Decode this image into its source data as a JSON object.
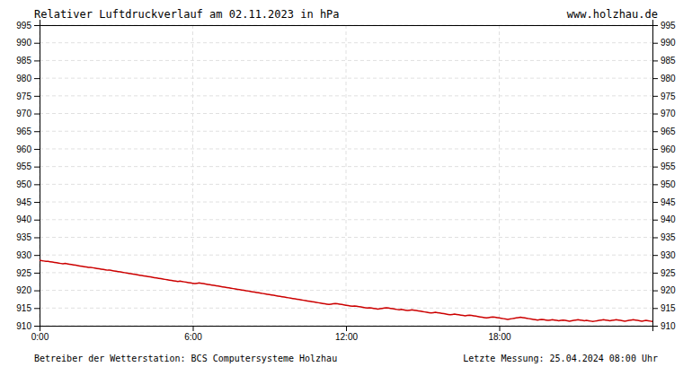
{
  "chart_data": {
    "type": "line",
    "title": "Relativer Luftdruckverlauf am 02.11.2023 in hPa",
    "annotations": [
      "www.holzhau.de",
      "Betreiber der Wetterstation: BCS Computersysteme Holzhau",
      "Letzte Messung: 25.04.2024 08:00 Uhr"
    ],
    "color": "#cc0000",
    "grid": true,
    "xlim": [
      0,
      288
    ],
    "xticks": [
      {
        "value": 0,
        "label": "0:00"
      },
      {
        "value": 72,
        "label": "6:00"
      },
      {
        "value": 144,
        "label": "12:00"
      },
      {
        "value": 216,
        "label": "18:00"
      }
    ],
    "ylim": [
      910,
      995
    ],
    "yticks": [
      910,
      915,
      920,
      925,
      930,
      935,
      940,
      945,
      950,
      955,
      960,
      965,
      970,
      975,
      980,
      985,
      990,
      995
    ],
    "values": [
      928.5,
      928.4,
      928.3,
      928.2,
      928.2,
      928.1,
      928.0,
      927.9,
      927.8,
      927.7,
      927.6,
      927.5,
      927.6,
      927.5,
      927.4,
      927.3,
      927.2,
      927.1,
      927.0,
      926.9,
      926.8,
      926.7,
      926.6,
      926.5,
      926.5,
      926.4,
      926.3,
      926.2,
      926.1,
      926.0,
      925.9,
      925.8,
      925.7,
      925.7,
      925.6,
      925.5,
      925.4,
      925.3,
      925.2,
      925.1,
      925.0,
      924.9,
      924.8,
      924.7,
      924.6,
      924.5,
      924.4,
      924.3,
      924.2,
      924.1,
      924.0,
      923.9,
      923.8,
      923.7,
      923.6,
      923.5,
      923.4,
      923.3,
      923.2,
      923.1,
      923.0,
      922.9,
      922.8,
      922.7,
      922.6,
      922.5,
      922.6,
      922.5,
      922.4,
      922.3,
      922.2,
      922.1,
      922.0,
      921.9,
      922.0,
      922.1,
      922.0,
      921.9,
      921.8,
      921.7,
      921.6,
      921.5,
      921.4,
      921.3,
      921.2,
      921.1,
      921.0,
      920.9,
      920.8,
      920.7,
      920.6,
      920.5,
      920.4,
      920.3,
      920.2,
      920.1,
      920.0,
      919.9,
      919.8,
      919.7,
      919.6,
      919.5,
      919.4,
      919.3,
      919.2,
      919.1,
      919.0,
      918.9,
      918.8,
      918.7,
      918.6,
      918.5,
      918.4,
      918.3,
      918.2,
      918.1,
      918.0,
      917.9,
      917.8,
      917.7,
      917.6,
      917.5,
      917.4,
      917.3,
      917.2,
      917.1,
      917.0,
      916.9,
      916.8,
      916.7,
      916.6,
      916.5,
      916.4,
      916.3,
      916.2,
      916.1,
      916.0,
      916.1,
      916.2,
      916.3,
      916.2,
      916.1,
      916.0,
      915.9,
      915.8,
      915.7,
      915.6,
      915.5,
      915.6,
      915.5,
      915.4,
      915.3,
      915.2,
      915.1,
      915.0,
      915.1,
      915.0,
      914.9,
      914.8,
      914.7,
      914.8,
      914.9,
      915.0,
      915.1,
      915.0,
      914.9,
      914.8,
      914.7,
      914.6,
      914.5,
      914.6,
      914.5,
      914.4,
      914.3,
      914.4,
      914.5,
      914.4,
      914.3,
      914.2,
      914.1,
      914.0,
      913.9,
      913.8,
      913.7,
      913.6,
      913.7,
      913.8,
      913.7,
      913.6,
      913.5,
      913.4,
      913.3,
      913.2,
      913.1,
      913.2,
      913.3,
      913.2,
      913.1,
      913.0,
      912.9,
      912.8,
      912.9,
      913.0,
      912.9,
      912.8,
      912.7,
      912.6,
      912.5,
      912.4,
      912.3,
      912.2,
      912.3,
      912.4,
      912.5,
      912.4,
      912.3,
      912.2,
      912.1,
      912.0,
      911.9,
      911.8,
      911.9,
      912.0,
      912.1,
      912.2,
      912.3,
      912.4,
      912.3,
      912.2,
      912.1,
      912.0,
      911.9,
      911.8,
      911.7,
      911.6,
      911.7,
      911.8,
      911.7,
      911.6,
      911.5,
      911.6,
      911.7,
      911.6,
      911.5,
      911.4,
      911.5,
      911.6,
      911.5,
      911.4,
      911.3,
      911.4,
      911.5,
      911.6,
      911.7,
      911.6,
      911.5,
      911.4,
      911.5,
      911.4,
      911.3,
      911.2,
      911.3,
      911.4,
      911.5,
      911.6,
      911.7,
      911.6,
      911.5,
      911.4,
      911.5,
      911.6,
      911.7,
      911.6,
      911.5,
      911.4,
      911.3,
      911.4,
      911.5,
      911.6,
      911.7,
      911.6,
      911.5,
      911.4,
      911.3,
      911.4,
      911.5,
      911.4,
      911.3,
      911.2,
      911.1
    ]
  }
}
